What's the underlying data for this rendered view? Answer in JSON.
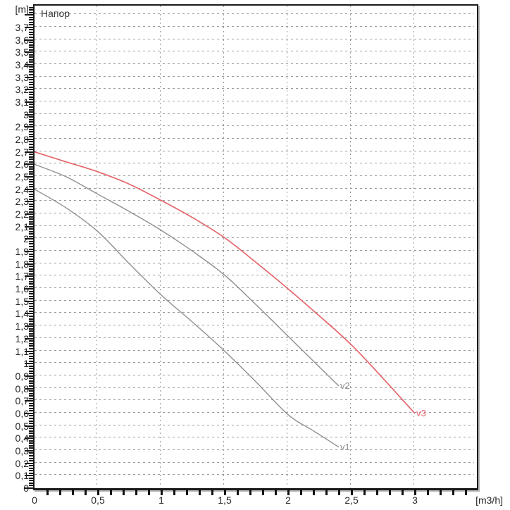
{
  "colors": {
    "background": "#ffffff",
    "axis": "#1b1b1b",
    "grid": "#9a9a9a",
    "text": "#272727",
    "curve_gray": "#8f8f8f",
    "curve_red": "#e4666b"
  },
  "chart_data": {
    "type": "line",
    "title": "Напор",
    "ylabel": "[m]",
    "xlabel": "[m3/h]",
    "xlim": [
      0,
      3.49
    ],
    "ylim": [
      0,
      3.87
    ],
    "grid": "dashed",
    "legend": "labels-at-line-end",
    "x_label_step": 0.5,
    "x_minor_tick_step": 0.1,
    "y_label_step": 0.1,
    "y_minor_tick_step": 0.02,
    "horizontal_gridline_step": 0.1,
    "vertical_gridlines": [
      0.5,
      1,
      1.5,
      2,
      2.5,
      3
    ],
    "x_ticks": [
      {
        "label": "0",
        "value": 0
      },
      {
        "label": "0,5",
        "value": 0.5
      },
      {
        "label": "1",
        "value": 1
      },
      {
        "label": "1,5",
        "value": 1.5
      },
      {
        "label": "2",
        "value": 2
      },
      {
        "label": "2,5",
        "value": 2.5
      },
      {
        "label": "3",
        "value": 3
      }
    ],
    "y_tick_labels": [
      "0",
      "0,1",
      "0,2",
      "0,3",
      "0,4",
      "0,5",
      "0,6",
      "0,7",
      "0,8",
      "0,9",
      "1",
      "1,1",
      "1,2",
      "1,3",
      "1,4",
      "1,5",
      "1,6",
      "1,7",
      "1,8",
      "1,9",
      "2",
      "2,1",
      "2,2",
      "2,3",
      "2,4",
      "2,5",
      "2,6",
      "2,7",
      "2,8",
      "2,9",
      "3",
      "3,1",
      "3,2",
      "3,3",
      "3,4",
      "3,5",
      "3,6",
      "3,7"
    ],
    "series": [
      {
        "name": "v1",
        "color": "#8f8f8f",
        "stroke_width": 1.4,
        "x": [
          0,
          0.25,
          0.5,
          0.75,
          1.0,
          1.25,
          1.5,
          1.75,
          2.0,
          2.2,
          2.4
        ],
        "y": [
          2.4,
          2.25,
          2.06,
          1.8,
          1.55,
          1.33,
          1.1,
          0.85,
          0.59,
          0.46,
          0.33
        ]
      },
      {
        "name": "v2",
        "color": "#8f8f8f",
        "stroke_width": 1.4,
        "x": [
          0,
          0.25,
          0.5,
          0.75,
          1.0,
          1.25,
          1.5,
          1.75,
          2.0,
          2.2,
          2.4
        ],
        "y": [
          2.6,
          2.5,
          2.36,
          2.22,
          2.07,
          1.9,
          1.71,
          1.47,
          1.22,
          1.02,
          0.82
        ]
      },
      {
        "name": "v3",
        "color": "#e4666b",
        "stroke_width": 1.7,
        "x": [
          0,
          0.25,
          0.5,
          0.75,
          1.0,
          1.25,
          1.5,
          1.75,
          2.0,
          2.25,
          2.5,
          2.75,
          3.0
        ],
        "y": [
          2.7,
          2.62,
          2.54,
          2.44,
          2.31,
          2.17,
          2.01,
          1.81,
          1.6,
          1.38,
          1.15,
          0.88,
          0.6
        ]
      }
    ]
  }
}
